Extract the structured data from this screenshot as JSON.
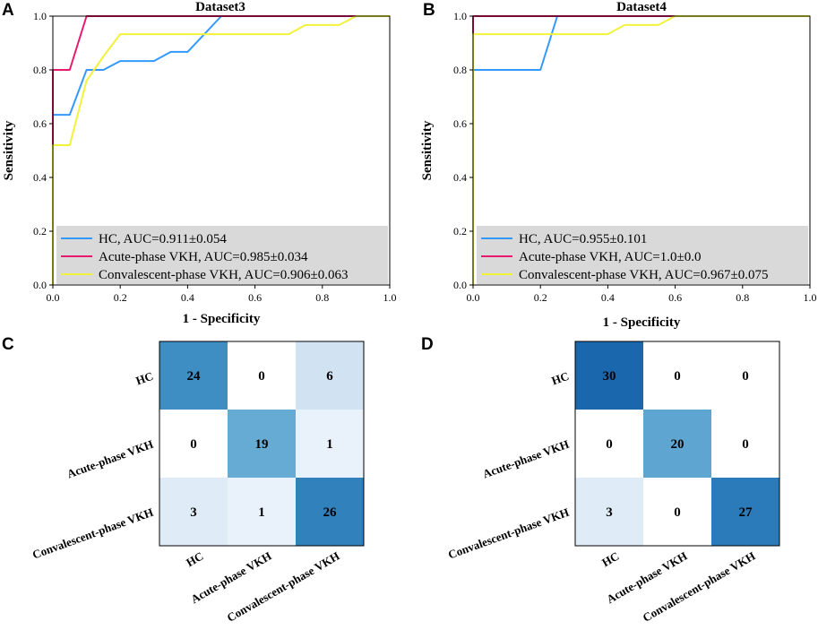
{
  "panels": [
    {
      "letter": "A",
      "chart_data": {
        "type": "line",
        "title": "Dataset3",
        "xlabel": "1 - Specificity",
        "ylabel": "Sensitivity",
        "xlim": [
          0,
          1
        ],
        "ylim": [
          0,
          1
        ],
        "xticks": [
          "0.0",
          "0.2",
          "0.4",
          "0.6",
          "0.8",
          "1.0"
        ],
        "yticks": [
          "0.0",
          "0.2",
          "0.4",
          "0.6",
          "0.8",
          "1.0"
        ],
        "legend_position": "lower-right",
        "series": [
          {
            "name": "HC, AUC=0.911±0.054",
            "color": "#3399ff",
            "points": [
              [
                0,
                0
              ],
              [
                0,
                0.633
              ],
              [
                0.05,
                0.633
              ],
              [
                0.1,
                0.8
              ],
              [
                0.15,
                0.8
              ],
              [
                0.2,
                0.833
              ],
              [
                0.3,
                0.833
              ],
              [
                0.35,
                0.867
              ],
              [
                0.4,
                0.867
              ],
              [
                0.5,
                1.0
              ],
              [
                1.0,
                1.0
              ]
            ]
          },
          {
            "name": "Acute-phase VKH, AUC=0.985±0.034",
            "color": "#e8196e",
            "points": [
              [
                0,
                0
              ],
              [
                0,
                0.8
              ],
              [
                0.05,
                0.8
              ],
              [
                0.1,
                1.0
              ],
              [
                1.0,
                1.0
              ]
            ]
          },
          {
            "name": "Convalescent-phase VKH, AUC=0.906±0.063",
            "color": "#f2f23a",
            "points": [
              [
                0,
                0
              ],
              [
                0,
                0.52
              ],
              [
                0.05,
                0.52
              ],
              [
                0.1,
                0.76
              ],
              [
                0.15,
                0.85
              ],
              [
                0.2,
                0.933
              ],
              [
                0.7,
                0.933
              ],
              [
                0.75,
                0.967
              ],
              [
                0.85,
                0.967
              ],
              [
                0.9,
                1.0
              ],
              [
                1.0,
                1.0
              ]
            ]
          }
        ]
      }
    },
    {
      "letter": "B",
      "chart_data": {
        "type": "line",
        "title": "Dataset4",
        "xlabel": "1 - Specificity",
        "ylabel": "Sensitivity",
        "xlim": [
          0,
          1
        ],
        "ylim": [
          0,
          1
        ],
        "xticks": [
          "0.0",
          "0.2",
          "0.4",
          "0.6",
          "0.8",
          "1.0"
        ],
        "yticks": [
          "0.0",
          "0.2",
          "0.4",
          "0.6",
          "0.8",
          "1.0"
        ],
        "legend_position": "lower-right",
        "series": [
          {
            "name": "HC, AUC=0.955±0.101",
            "color": "#3399ff",
            "points": [
              [
                0,
                0
              ],
              [
                0,
                0.8
              ],
              [
                0.2,
                0.8
              ],
              [
                0.25,
                1.0
              ],
              [
                1.0,
                1.0
              ]
            ]
          },
          {
            "name": "Acute-phase VKH, AUC=1.0±0.0",
            "color": "#e8196e",
            "points": [
              [
                0,
                0
              ],
              [
                0,
                1.0
              ],
              [
                1.0,
                1.0
              ]
            ]
          },
          {
            "name": "Convalescent-phase VKH, AUC=0.967±0.075",
            "color": "#f2f23a",
            "points": [
              [
                0,
                0
              ],
              [
                0,
                0.933
              ],
              [
                0.4,
                0.933
              ],
              [
                0.45,
                0.967
              ],
              [
                0.55,
                0.967
              ],
              [
                0.6,
                1.0
              ],
              [
                1.0,
                1.0
              ]
            ]
          }
        ]
      }
    },
    {
      "letter": "C",
      "chart_data": {
        "type": "heatmap",
        "labels": [
          "HC",
          "Acute-phase VKH",
          "Convalescent-phase VKH"
        ],
        "max": 30,
        "matrix": [
          [
            24,
            0,
            6
          ],
          [
            0,
            19,
            1
          ],
          [
            3,
            1,
            26
          ]
        ]
      }
    },
    {
      "letter": "D",
      "chart_data": {
        "type": "heatmap",
        "labels": [
          "HC",
          "Acute-phase VKH",
          "Convalescent-phase VKH"
        ],
        "max": 30,
        "matrix": [
          [
            30,
            0,
            0
          ],
          [
            0,
            20,
            0
          ],
          [
            3,
            0,
            27
          ]
        ]
      }
    }
  ]
}
